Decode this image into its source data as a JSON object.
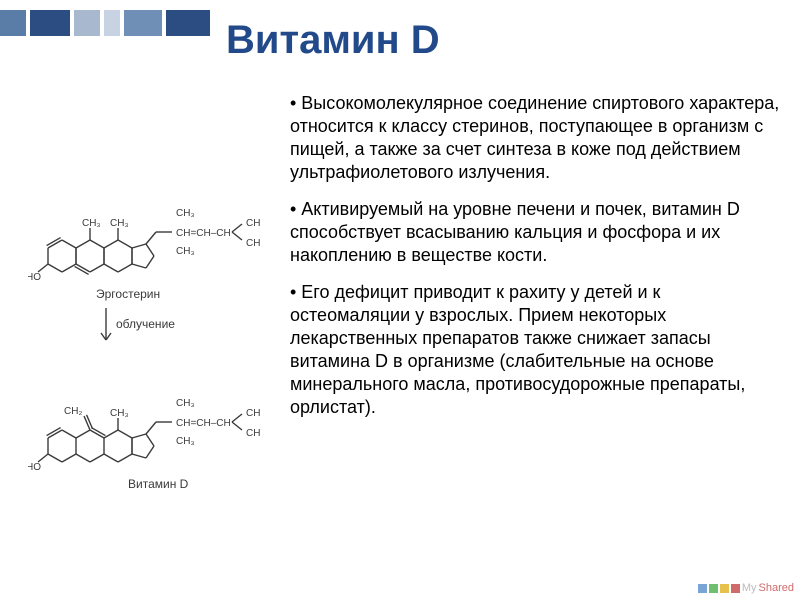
{
  "title": {
    "text": "Витамин D",
    "color": "#224a8a",
    "fontsize": 40
  },
  "accent": {
    "blocks": [
      {
        "w": 26,
        "color": "#5a7da8"
      },
      {
        "w": 40,
        "color": "#2b4d82"
      },
      {
        "w": 26,
        "color": "#a7b8cf"
      },
      {
        "w": 16,
        "color": "#c7d2e2"
      },
      {
        "w": 38,
        "color": "#6f8fb6"
      },
      {
        "w": 44,
        "color": "#2b4d82"
      }
    ]
  },
  "paragraphs": {
    "fontsize": 18,
    "items": [
      "• Высокомолекулярное соединение спиртового характера, относится к классу стеринов, поступающее в организм с пищей, а также за счет синтеза в коже под действием ультрафиолетового излучения.",
      "• Активируемый на уровне печени и почек, витамин D способствует всасыванию кальция и фосфора и их накоплению в веществе кости.",
      "• Его дефицит приводит к рахиту у детей и к остеомаляции у взрослых. Прием некоторых лекарственных препаратов также снижает запасы витамина D в организме (слабительные на основе минерального масла, противосудорожные препараты, орлистат)."
    ]
  },
  "diagram": {
    "stroke": "#3a3a3a",
    "label_fontsize": 10,
    "caption_fontsize": 12,
    "top_caption": "Эргостерин",
    "arrow_label": "облучение",
    "bottom_caption": "Витамин D",
    "top_labels": {
      "ho": "HO",
      "ch3_a": "CH₃",
      "ch3_b": "CH₃",
      "ch3_c": "CH₃",
      "ch3_d": "CH₃",
      "chain": "CH=CH–CH"
    },
    "bot_labels": {
      "ho": "HO",
      "ch2": "CH₂",
      "ch3_a": "CH₃",
      "ch3_b": "CH₃",
      "ch3_c": "CH₃",
      "ch3_d": "CH₃",
      "chain": "CH=CH–CH"
    }
  },
  "watermark": {
    "text": "My",
    "text2": "Shared",
    "sq_colors": [
      "#7aa4d6",
      "#6fbf73",
      "#e6c24d",
      "#d06b6b"
    ]
  }
}
